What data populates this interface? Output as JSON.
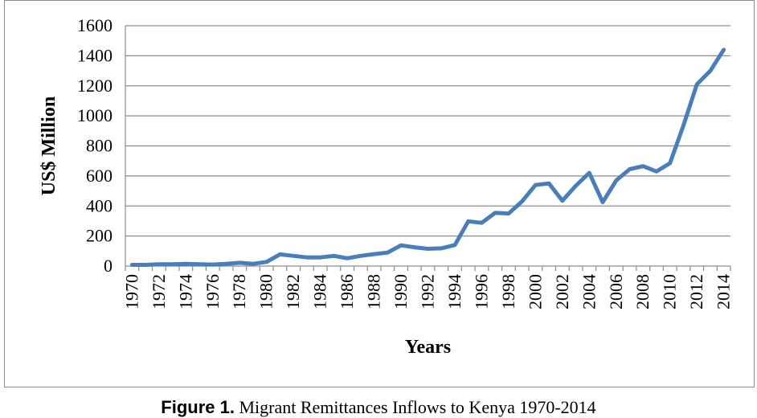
{
  "caption": {
    "label": "Figure 1.",
    "text": "Migrant Remittances Inflows to Kenya 1970-2014"
  },
  "chart_data": {
    "type": "line",
    "title": "",
    "xlabel": "Years",
    "ylabel": "US$ Million",
    "ylim": [
      0,
      1600
    ],
    "yticks": [
      0,
      200,
      400,
      600,
      800,
      1000,
      1200,
      1400,
      1600
    ],
    "xtick_labels": [
      "1970",
      "1972",
      "1974",
      "1976",
      "1978",
      "1980",
      "1982",
      "1984",
      "1986",
      "1988",
      "1990",
      "1992",
      "1994",
      "1996",
      "1998",
      "2000",
      "2002",
      "2004",
      "2006",
      "2008",
      "2010",
      "2012",
      "2014"
    ],
    "grid": "horizontal",
    "line_color": "#4a7ebb",
    "series": [
      {
        "x": [
          1970,
          1971,
          1972,
          1973,
          1974,
          1975,
          1976,
          1977,
          1978,
          1979,
          1980,
          1981,
          1982,
          1983,
          1984,
          1985,
          1986,
          1987,
          1988,
          1989,
          1990,
          1991,
          1992,
          1993,
          1994,
          1995,
          1996,
          1997,
          1998,
          1999,
          2000,
          2001,
          2002,
          2003,
          2004,
          2005,
          2006,
          2007,
          2008,
          2009,
          2010,
          2011,
          2012,
          2013,
          2014
        ],
        "values": [
          8,
          8,
          12,
          12,
          15,
          12,
          10,
          15,
          22,
          15,
          28,
          78,
          68,
          58,
          58,
          68,
          52,
          68,
          80,
          90,
          138,
          125,
          115,
          118,
          140,
          298,
          288,
          355,
          350,
          430,
          540,
          550,
          435,
          535,
          620,
          425,
          570,
          645,
          665,
          630,
          685,
          935,
          1210,
          1300,
          1440
        ]
      }
    ]
  }
}
